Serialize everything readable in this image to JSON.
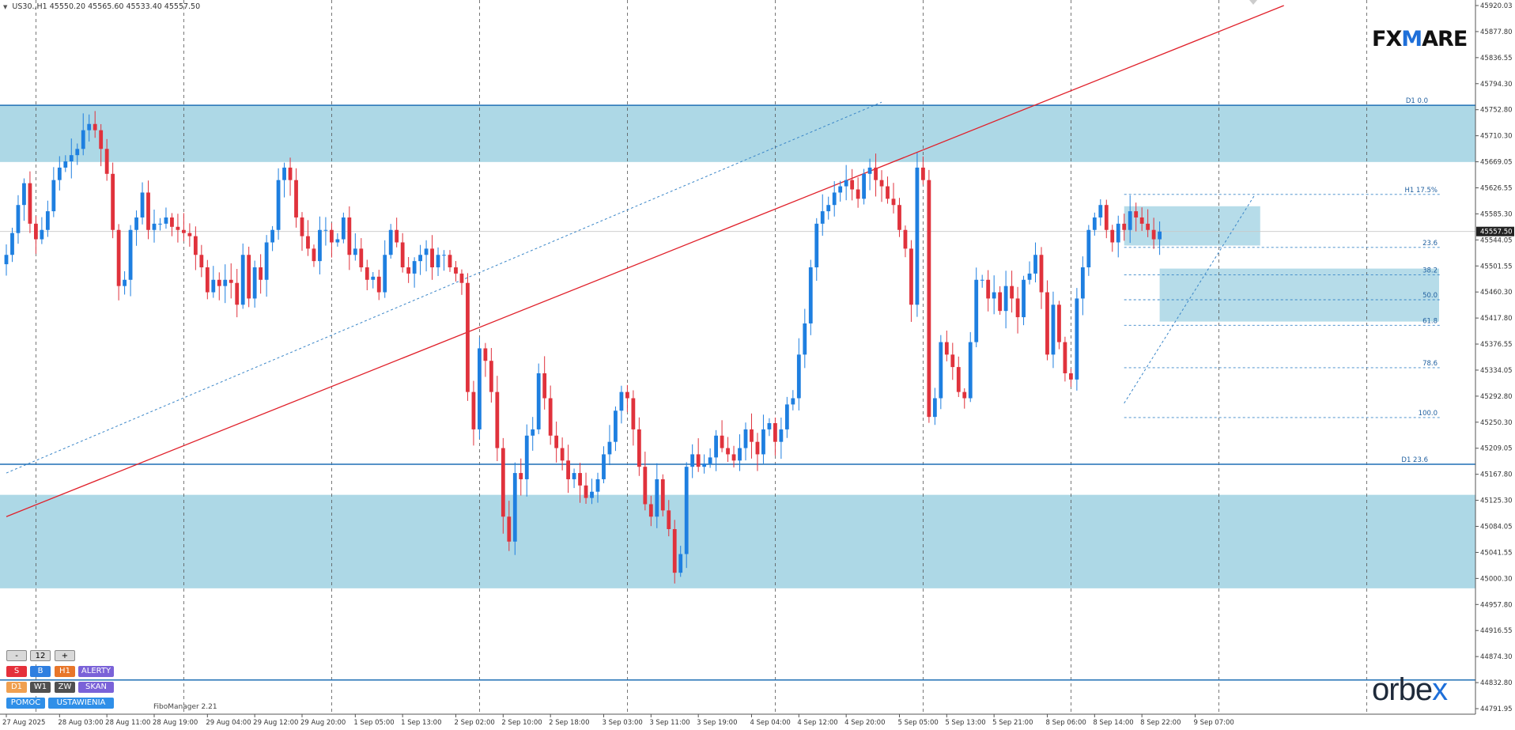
{
  "header": {
    "symbol": "US30.,H1",
    "ohlc": "45550.20 45565.60 45533.40 45557.50"
  },
  "logos": {
    "fxmare_left": "FX",
    "fxmare_w": "M",
    "fxmare_right": "ARE",
    "orbex_left": "orbe",
    "orbex_x": "x"
  },
  "indicator": {
    "name": "FiboManager 2.21"
  },
  "panel": {
    "minus": "-",
    "count": "12",
    "plus": "+",
    "row1": [
      "S",
      "B",
      "H1",
      "ALERTY"
    ],
    "row2": [
      "D1",
      "W1",
      "ZW",
      "SKAN"
    ],
    "row3": [
      "POMOC",
      "USTAWIENIA"
    ]
  },
  "colors": {
    "bull": "#1e7fe0",
    "bear": "#e0323c",
    "zone": "#a9d6e5",
    "level_line": "#1f6fb5",
    "trend_line": "#e0202a",
    "fib_line": "#3a86c8",
    "grid": "#555555"
  },
  "chart_data": {
    "type": "candlestick",
    "symbol": "US30.",
    "timeframe": "H1",
    "ylim": [
      44791.95,
      45920.03
    ],
    "y_ticks": [
      "45920.03",
      "45877.80",
      "45836.55",
      "45794.30",
      "45752.80",
      "45710.30",
      "45669.05",
      "45626.55",
      "45585.30",
      "45544.05",
      "45501.55",
      "45460.30",
      "45417.80",
      "45376.55",
      "45334.05",
      "45292.80",
      "45250.30",
      "45209.05",
      "45167.80",
      "45125.30",
      "45084.05",
      "45041.55",
      "45000.30",
      "44957.80",
      "44916.55",
      "44874.30",
      "44832.80",
      "44791.95"
    ],
    "x_labels": [
      "27 Aug 2025",
      "28 Aug 03:00",
      "28 Aug 11:00",
      "28 Aug 19:00",
      "29 Aug 04:00",
      "29 Aug 12:00",
      "29 Aug 20:00",
      "1 Sep 05:00",
      "1 Sep 13:00",
      "2 Sep 02:00",
      "2 Sep 10:00",
      "2 Sep 18:00",
      "3 Sep 03:00",
      "3 Sep 11:00",
      "3 Sep 19:00",
      "4 Sep 04:00",
      "4 Sep 12:00",
      "4 Sep 20:00",
      "5 Sep 05:00",
      "5 Sep 13:00",
      "5 Sep 21:00",
      "8 Sep 06:00",
      "8 Sep 14:00",
      "8 Sep 22:00",
      "9 Sep 07:00"
    ],
    "x_label_index": [
      0,
      9,
      17,
      25,
      34,
      42,
      50,
      59,
      67,
      76,
      84,
      92,
      101,
      109,
      117,
      126,
      134,
      142,
      151,
      159,
      167,
      176,
      184,
      192,
      201
    ],
    "grid_index": [
      5,
      30,
      55,
      80,
      105,
      130,
      155,
      180,
      205,
      230
    ],
    "current_price": 45557.5,
    "closes": [
      45520,
      45555,
      45600,
      45635,
      45570,
      45545,
      45560,
      45590,
      45640,
      45660,
      45670,
      45680,
      45690,
      45720,
      45730,
      45720,
      45690,
      45650,
      45560,
      45470,
      45480,
      45560,
      45580,
      45620,
      45560,
      45570,
      45570,
      45580,
      45565,
      45560,
      45555,
      45550,
      45520,
      45500,
      45460,
      45480,
      45470,
      45480,
      45475,
      45440,
      45520,
      45450,
      45500,
      45480,
      45540,
      45560,
      45640,
      45660,
      45640,
      45580,
      45550,
      45530,
      45510,
      45560,
      45560,
      45540,
      45545,
      45580,
      45520,
      45530,
      45500,
      45480,
      45485,
      45460,
      45520,
      45560,
      45540,
      45500,
      45490,
      45510,
      45520,
      45530,
      45500,
      45520,
      45520,
      45500,
      45490,
      45475,
      45300,
      45240,
      45370,
      45350,
      45300,
      45210,
      45100,
      45060,
      45170,
      45160,
      45230,
      45240,
      45330,
      45290,
      45230,
      45210,
      45190,
      45160,
      45170,
      45150,
      45130,
      45140,
      45160,
      45200,
      45220,
      45270,
      45300,
      45290,
      45240,
      45180,
      45120,
      45100,
      45160,
      45110,
      45080,
      45010,
      45040,
      45180,
      45200,
      45180,
      45185,
      45195,
      45230,
      45210,
      45200,
      45190,
      45210,
      45240,
      45220,
      45200,
      45240,
      45250,
      45220,
      45240,
      45280,
      45290,
      45360,
      45410,
      45500,
      45570,
      45590,
      45600,
      45620,
      45630,
      45640,
      45625,
      45610,
      45650,
      45660,
      45640,
      45630,
      45610,
      45600,
      45560,
      45530,
      45440,
      45660,
      45640,
      45260,
      45290,
      45380,
      45360,
      45340,
      45300,
      45290,
      45380,
      45480,
      45480,
      45450,
      45460,
      45430,
      45470,
      45450,
      45420,
      45480,
      45490,
      45520,
      45460,
      45360,
      45440,
      45380,
      45330,
      45320,
      45450,
      45500,
      45560,
      45580,
      45600,
      45560,
      45540,
      45570,
      45560,
      45590,
      45580,
      45570,
      45560,
      45545,
      45557.5
    ],
    "zones": [
      {
        "from": 45669,
        "to": 45760
      },
      {
        "from": 44985,
        "to": 45135
      },
      {
        "from": 45413,
        "to": 45498,
        "start_index": 195
      },
      {
        "from": 45535,
        "to": 45598,
        "start_index": 189,
        "end_index": 212
      }
    ],
    "horizontal_levels": [
      {
        "price": 45760,
        "label": "D1 0.0"
      },
      {
        "price": 45184,
        "label": "D1 23.6"
      },
      {
        "price": 44838,
        "label": ""
      }
    ],
    "fib_levels": [
      {
        "price": 45617,
        "label": "H1 17.5%"
      },
      {
        "price": 45532,
        "label": "23.6"
      },
      {
        "price": 45488,
        "label": "38.2"
      },
      {
        "price": 45448,
        "label": "50.0"
      },
      {
        "price": 45407,
        "label": "61.8"
      },
      {
        "price": 45339,
        "label": "78.6"
      },
      {
        "price": 45259,
        "label": "100.0"
      }
    ],
    "fib_start_index": 189,
    "trend_lines": [
      {
        "kind": "red",
        "from": [
          0,
          45100
        ],
        "to": [
          216,
          45920
        ]
      },
      {
        "kind": "dash",
        "from": [
          0,
          45170
        ],
        "to": [
          148,
          45765
        ]
      },
      {
        "kind": "dash",
        "from": [
          189,
          45282
        ],
        "to": [
          211,
          45615
        ]
      }
    ]
  }
}
